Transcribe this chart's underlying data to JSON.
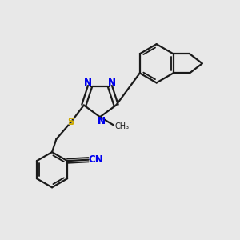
{
  "background_color": "#e8e8e8",
  "bond_color": "#1a1a1a",
  "bond_width": 1.6,
  "atom_colors": {
    "N": "#0000ee",
    "S": "#ccaa00",
    "CN_blue": "#0000ee"
  },
  "figsize": [
    3.0,
    3.0
  ],
  "dpi": 100
}
